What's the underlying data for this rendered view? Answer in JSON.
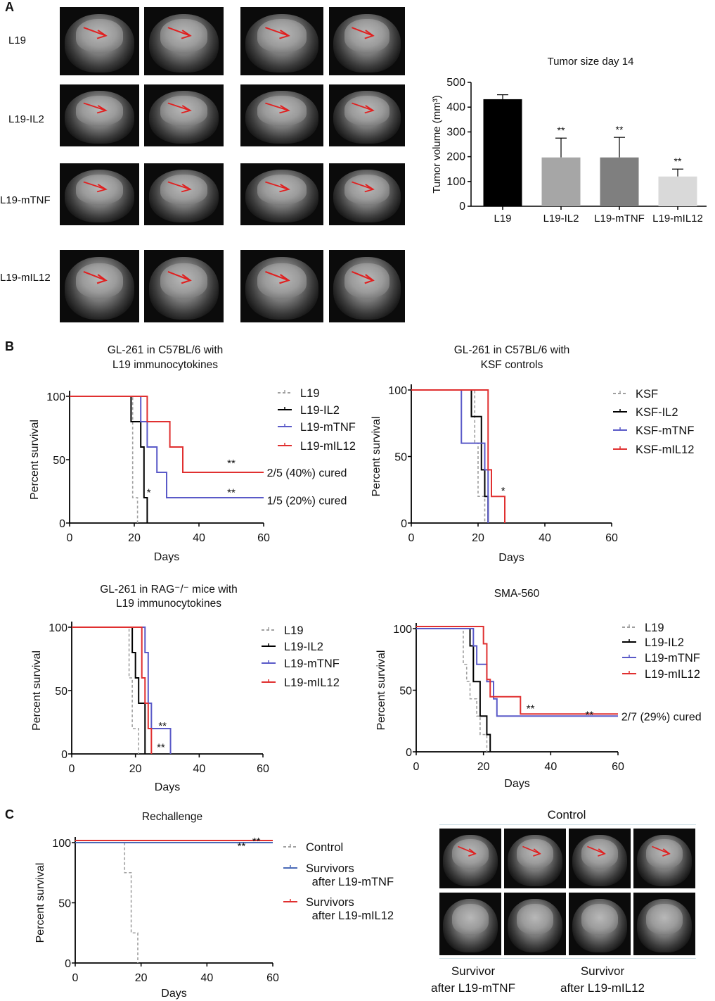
{
  "panel_labels": {
    "a": "A",
    "b": "B",
    "c": "C"
  },
  "panel_a": {
    "row_labels": [
      "L19",
      "L19-IL2",
      "L19-mTNF",
      "L19-mIL12"
    ]
  },
  "panel_c": {
    "image_title": "Control",
    "captions": [
      {
        "line1": "Survivor",
        "line2": "after L19-mTNF"
      },
      {
        "line1": "Survivor",
        "line2": "after L19-mIL12"
      }
    ]
  },
  "colors": {
    "L19": "#a0a0a0",
    "IL2": "#000000",
    "mTNF": "#5a5ac8",
    "mIL12": "#e03030",
    "arrow": "#e02020"
  },
  "chart_data": [
    {
      "type": "bar",
      "title": "Tumor size day 14",
      "xlabel": "",
      "ylabel": "Tumor volume (mm³)",
      "categories": [
        "L19",
        "L19-IL2",
        "L19-mTNF",
        "L19-mIL12"
      ],
      "values": [
        432,
        197,
        197,
        120
      ],
      "error_upper": [
        18,
        78,
        81,
        30
      ],
      "significance": [
        "",
        "**",
        "**",
        "**"
      ],
      "bar_colors": [
        "#000000",
        "#a6a6a6",
        "#7f7f7f",
        "#d9d9d9"
      ],
      "ylim": [
        0,
        500
      ],
      "yticks": [
        0,
        100,
        200,
        300,
        400,
        500
      ],
      "grid": false
    },
    {
      "type": "line",
      "title": [
        "GL-261 in C57BL/6 with",
        "L19 immunocytokines"
      ],
      "xlabel": "Days",
      "ylabel": "Percent survival",
      "xlim": [
        0,
        60
      ],
      "ylim": [
        0,
        100
      ],
      "xticks": [
        0,
        20,
        40,
        60
      ],
      "yticks": [
        0,
        50,
        100
      ],
      "legend": "right",
      "series": [
        {
          "name": "L19",
          "color": "#a0a0a0",
          "dashed": true,
          "steps": [
            [
              19.5,
              20
            ],
            [
              21,
              0
            ]
          ]
        },
        {
          "name": "L19-IL2",
          "color": "#000000",
          "dashed": false,
          "steps": [
            [
              19,
              80
            ],
            [
              22,
              60
            ],
            [
              23,
              20
            ],
            [
              24,
              0
            ]
          ]
        },
        {
          "name": "L19-mTNF",
          "color": "#5a5ac8",
          "dashed": false,
          "steps": [
            [
              22,
              80
            ],
            [
              24,
              60
            ],
            [
              27,
              40
            ],
            [
              30,
              20
            ]
          ]
        },
        {
          "name": "L19-mIL12",
          "color": "#e03030",
          "dashed": false,
          "steps": [
            [
              24,
              80
            ],
            [
              31,
              60
            ],
            [
              35,
              40
            ]
          ]
        }
      ],
      "annotations": [
        {
          "text": "**",
          "x": 50,
          "y": 50
        },
        {
          "text": "**",
          "x": 50,
          "y": 27
        },
        {
          "text": "*",
          "x": 24.5,
          "y": 27
        },
        {
          "text": "2/5 (40%) cured",
          "x": 61,
          "y": 40
        },
        {
          "text": "1/5 (20%) cured",
          "x": 61,
          "y": 18
        }
      ]
    },
    {
      "type": "line",
      "title": [
        "GL-261 in C57BL/6 with",
        "KSF controls"
      ],
      "xlabel": "Days",
      "ylabel": "Percent survival",
      "xlim": [
        0,
        60
      ],
      "ylim": [
        0,
        100
      ],
      "xticks": [
        0,
        20,
        40,
        60
      ],
      "yticks": [
        0,
        50,
        100
      ],
      "legend": "right",
      "series": [
        {
          "name": "KSF",
          "color": "#a0a0a0",
          "dashed": true,
          "steps": [
            [
              19,
              60
            ],
            [
              20,
              20
            ],
            [
              22,
              0
            ]
          ]
        },
        {
          "name": "KSF-IL2",
          "color": "#000000",
          "dashed": false,
          "steps": [
            [
              18,
              80
            ],
            [
              21,
              40
            ],
            [
              22,
              20
            ],
            [
              23,
              0
            ]
          ]
        },
        {
          "name": "KSF-mTNF",
          "color": "#5a5ac8",
          "dashed": false,
          "steps": [
            [
              15,
              60
            ],
            [
              22,
              40
            ],
            [
              23,
              0
            ]
          ]
        },
        {
          "name": "KSF-mIL12",
          "color": "#e03030",
          "dashed": false,
          "steps": [
            [
              23,
              40
            ],
            [
              24,
              20
            ],
            [
              28,
              0
            ]
          ]
        }
      ],
      "annotations": [
        {
          "text": "*",
          "x": 27.5,
          "y": 27
        }
      ]
    },
    {
      "type": "line",
      "title": [
        "GL-261 in RAG⁻/⁻ mice with",
        "L19 immunocytokines"
      ],
      "xlabel": "Days",
      "ylabel": "Percent survival",
      "xlim": [
        0,
        60
      ],
      "ylim": [
        0,
        100
      ],
      "xticks": [
        0,
        20,
        40,
        60
      ],
      "yticks": [
        0,
        50,
        100
      ],
      "legend": "right",
      "series": [
        {
          "name": "L19",
          "color": "#a0a0a0",
          "dashed": true,
          "steps": [
            [
              18,
              60
            ],
            [
              19,
              20
            ],
            [
              21,
              0
            ]
          ]
        },
        {
          "name": "L19-IL2",
          "color": "#000000",
          "dashed": false,
          "steps": [
            [
              19,
              80
            ],
            [
              20,
              60
            ],
            [
              21,
              40
            ],
            [
              23,
              0
            ]
          ]
        },
        {
          "name": "L19-mTNF",
          "color": "#5a5ac8",
          "dashed": false,
          "steps": [
            [
              23,
              80
            ],
            [
              24,
              40
            ],
            [
              25,
              20
            ],
            [
              31,
              0
            ]
          ]
        },
        {
          "name": "L19-mIL12",
          "color": "#e03030",
          "dashed": false,
          "steps": [
            [
              22,
              60
            ],
            [
              23,
              40
            ],
            [
              24,
              20
            ],
            [
              25,
              0
            ]
          ]
        }
      ],
      "annotations": [
        {
          "text": "**",
          "x": 28.5,
          "y": 25
        },
        {
          "text": "**",
          "x": 28,
          "y": 8
        }
      ]
    },
    {
      "type": "line",
      "title": [
        "SMA-560"
      ],
      "xlabel": "Days",
      "ylabel": "Percent survival",
      "xlim": [
        0,
        60
      ],
      "ylim": [
        0,
        100
      ],
      "xticks": [
        0,
        20,
        40,
        60
      ],
      "yticks": [
        0,
        50,
        100
      ],
      "legend": "right",
      "series": [
        {
          "name": "L19",
          "color": "#a0a0a0",
          "dashed": true,
          "steps": [
            [
              14,
              71
            ],
            [
              15,
              57
            ],
            [
              16,
              43
            ],
            [
              18,
              29
            ],
            [
              19,
              14
            ],
            [
              21,
              0
            ]
          ]
        },
        {
          "name": "L19-IL2",
          "color": "#000000",
          "dashed": false,
          "steps": [
            [
              16,
              86
            ],
            [
              17,
              57
            ],
            [
              19,
              29
            ],
            [
              21,
              14
            ],
            [
              22,
              0
            ]
          ]
        },
        {
          "name": "L19-mTNF",
          "color": "#5a5ac8",
          "dashed": false,
          "steps": [
            [
              17,
              86
            ],
            [
              18,
              71
            ],
            [
              21,
              57
            ],
            [
              23,
              43
            ],
            [
              24,
              29
            ]
          ]
        },
        {
          "name": "L19-mIL12",
          "color": "#e03030",
          "dashed": false,
          "steps": [
            [
              20,
              86
            ],
            [
              21,
              57
            ],
            [
              22,
              43
            ],
            [
              31,
              29
            ]
          ]
        }
      ],
      "annotations": [
        {
          "text": "**",
          "x": 34,
          "y": 38
        },
        {
          "text": "**",
          "x": 51.5,
          "y": 33
        },
        {
          "text": "2/7 (29%) cured",
          "x": 61,
          "y": 29
        }
      ]
    },
    {
      "type": "line",
      "title": [
        "Rechallenge"
      ],
      "xlabel": "Days",
      "ylabel": "Percent survival",
      "xlim": [
        0,
        60
      ],
      "ylim": [
        0,
        100
      ],
      "xticks": [
        0,
        20,
        40,
        60
      ],
      "yticks": [
        0,
        50,
        100
      ],
      "legend": "right",
      "series": [
        {
          "name": "Control",
          "color": "#a0a0a0",
          "dashed": true,
          "steps": [
            [
              15,
              75
            ],
            [
              17,
              25
            ],
            [
              19,
              0
            ]
          ]
        },
        {
          "name": "Survivors\n after L19-mTNF",
          "color": "#4a6ab8",
          "dashed": false,
          "steps": []
        },
        {
          "name": "Survivors\n after L19-mIL12",
          "color": "#e03030",
          "dashed": false,
          "steps": []
        }
      ],
      "annotations": [
        {
          "text": "**",
          "x": 50.5,
          "y": 100
        },
        {
          "text": "**",
          "x": 55,
          "y": 104
        }
      ]
    }
  ]
}
